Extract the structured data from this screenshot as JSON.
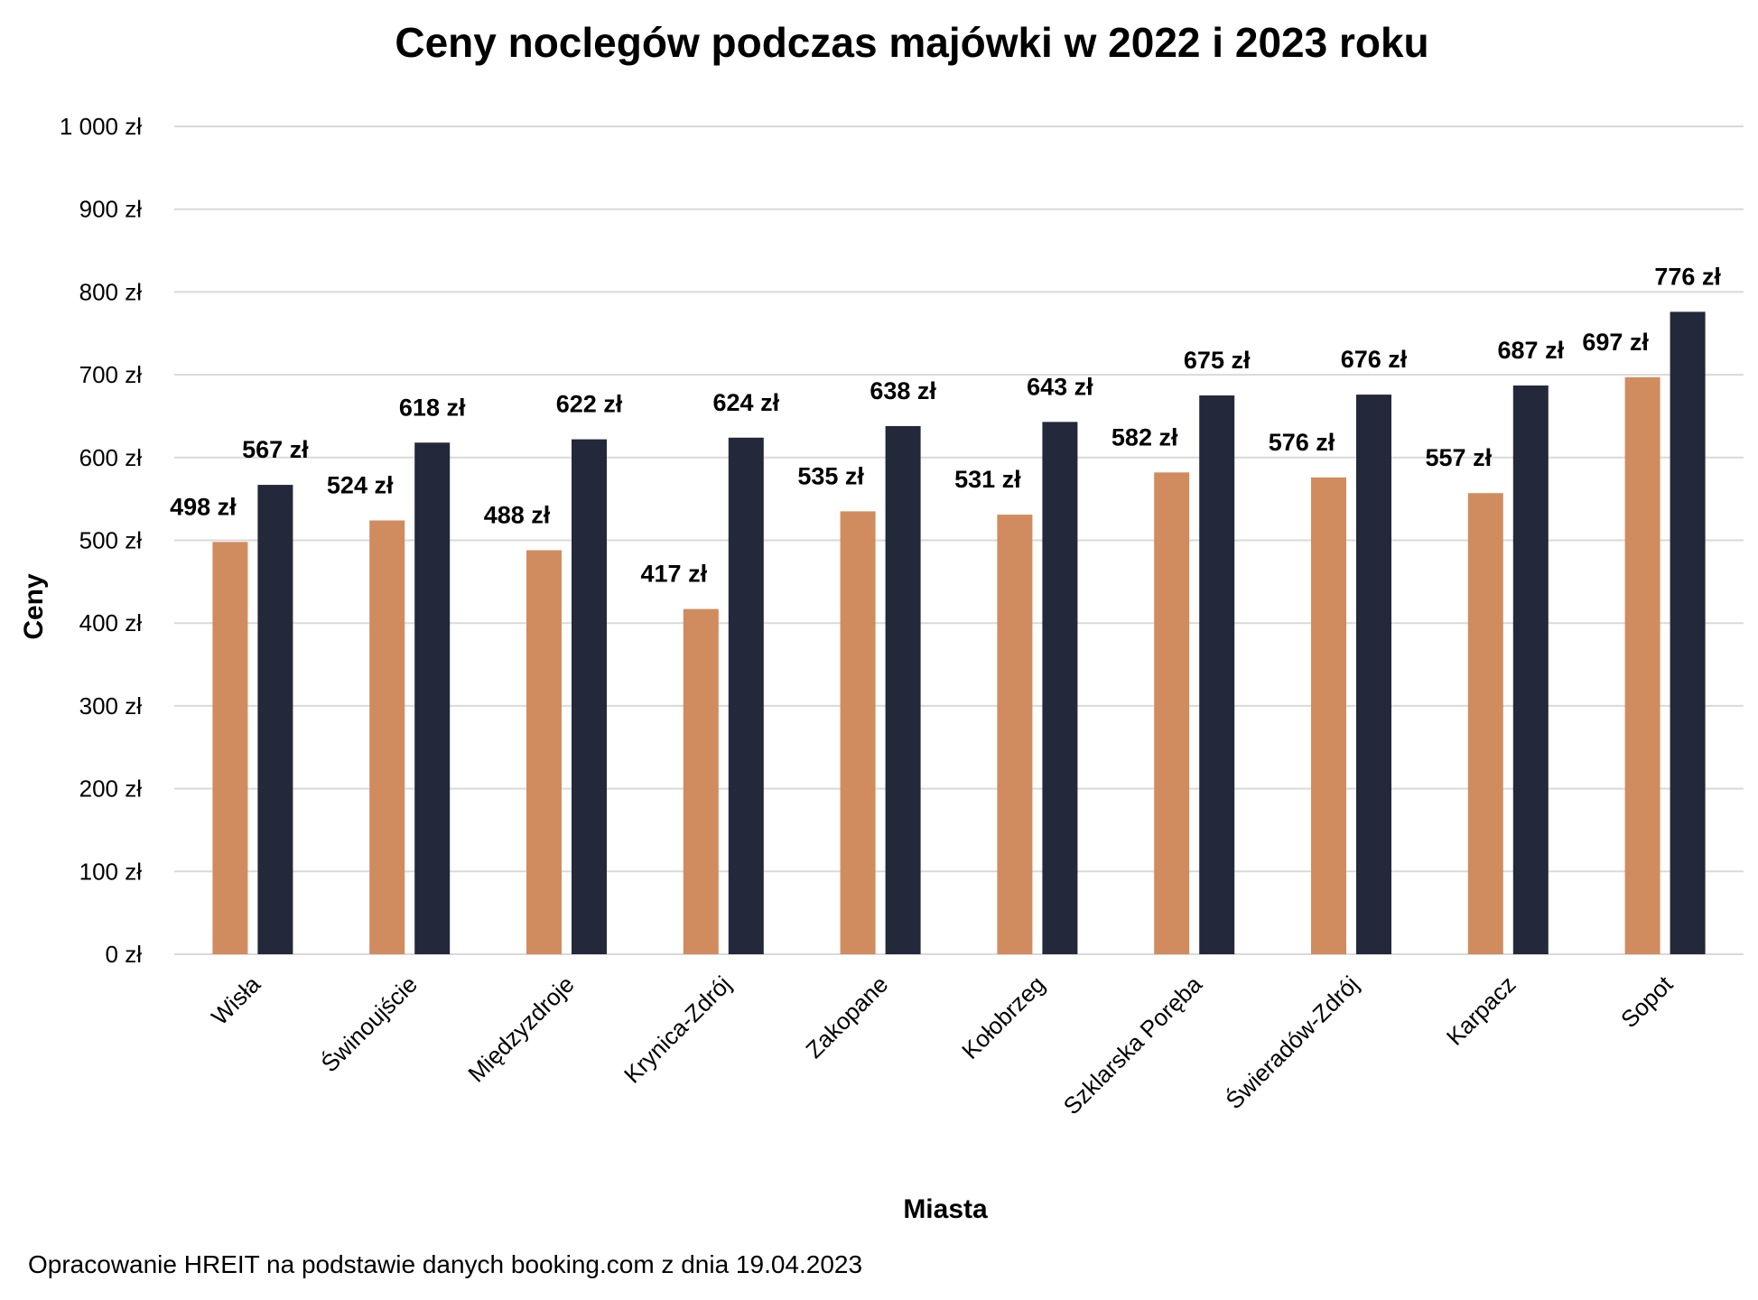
{
  "chart_data": {
    "type": "bar",
    "title": "Ceny noclegów podczas majówki w 2022 i 2023 roku",
    "xlabel": "Miasta",
    "ylabel": "Ceny",
    "ylim": [
      0,
      1000
    ],
    "yticks": [
      0,
      100,
      200,
      300,
      400,
      500,
      600,
      700,
      800,
      900,
      1000
    ],
    "ytick_labels": [
      "0 zł",
      "100 zł",
      "200 zł",
      "300 zł",
      "400 zł",
      "500 zł",
      "600 zł",
      "700 zł",
      "800 zł",
      "900 zł",
      "1 000 zł"
    ],
    "grid": true,
    "categories": [
      "Wisła",
      "Świnoujście",
      "Międzyzdroje",
      "Krynica-Zdrój",
      "Zakopane",
      "Kołobrzeg",
      "Szklarska Poręba",
      "Świeradów-Zdrój",
      "Karpacz",
      "Sopot"
    ],
    "series": [
      {
        "color": "#D08C5E",
        "values": [
          498,
          524,
          488,
          417,
          535,
          531,
          582,
          576,
          557,
          697
        ]
      },
      {
        "color": "#23283A",
        "values": [
          567,
          618,
          622,
          624,
          638,
          643,
          675,
          676,
          687,
          776
        ]
      }
    ],
    "value_suffix": " zł",
    "footnote": "Opracowanie HREIT na podstawie danych booking.com z dnia 19.04.2023"
  }
}
